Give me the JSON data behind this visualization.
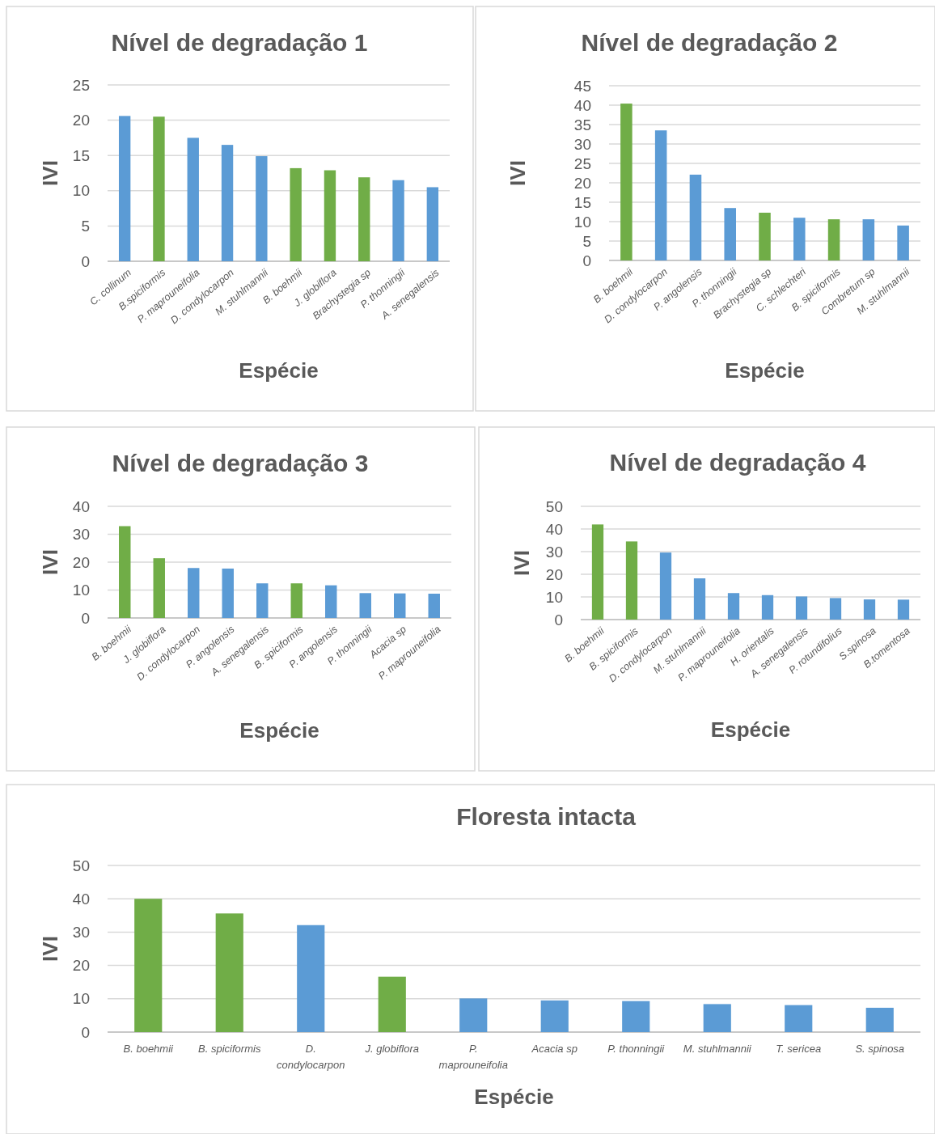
{
  "chart_data": [
    {
      "type": "bar",
      "title": "Nível de degradação 1",
      "xlabel": "Espécie",
      "ylabel": "IVI",
      "categories": [
        "C. collinum",
        "B.spiciformis",
        "P. maprouneifolia",
        "D. condylocarpon",
        "M. stuhlmannii",
        "B. boehmii",
        "J. globiflora",
        "Brachystegia sp",
        "P. thonningii",
        "A. senegalensis"
      ],
      "values": [
        20.6,
        20.5,
        17.5,
        16.5,
        14.9,
        13.2,
        12.9,
        11.9,
        11.5,
        10.5
      ],
      "colors": [
        "#5b9bd5",
        "#70ad47",
        "#5b9bd5",
        "#5b9bd5",
        "#5b9bd5",
        "#70ad47",
        "#70ad47",
        "#70ad47",
        "#5b9bd5",
        "#5b9bd5"
      ],
      "ylim": [
        0,
        25
      ],
      "yticks": [
        0,
        5,
        10,
        15,
        20,
        25
      ],
      "grid": "y"
    },
    {
      "type": "bar",
      "title": "Nível de degradação 2",
      "xlabel": "Espécie",
      "ylabel": "IVI",
      "categories": [
        "B. boehmii",
        "D. condylocarpon",
        "P. angolensis",
        "P. thonningii",
        "Brachystegia sp",
        "C. schlechteri",
        "B. spiciformis",
        "Combretum sp",
        "M. stuhlmannii"
      ],
      "values": [
        40.4,
        33.5,
        22.1,
        13.5,
        12.3,
        11.0,
        10.6,
        10.6,
        9.0
      ],
      "colors": [
        "#70ad47",
        "#5b9bd5",
        "#5b9bd5",
        "#5b9bd5",
        "#70ad47",
        "#5b9bd5",
        "#70ad47",
        "#5b9bd5",
        "#5b9bd5"
      ],
      "ylim": [
        0,
        45
      ],
      "yticks": [
        0,
        5,
        10,
        15,
        20,
        25,
        30,
        35,
        40,
        45
      ],
      "grid": "y"
    },
    {
      "type": "bar",
      "title": "Nível de degradação 3",
      "xlabel": "Espécie",
      "ylabel": "IVI",
      "categories": [
        "B. boehmii",
        "J. globiflora",
        "D. condylocarpon",
        "P. angolensis",
        "A. senegalensis",
        "B. spiciformis",
        "P. angolensis",
        "P. thonningii",
        "Acacia sp",
        "P. maprouneifolia"
      ],
      "values": [
        32.9,
        21.4,
        17.9,
        17.7,
        12.4,
        12.4,
        11.7,
        8.9,
        8.8,
        8.7
      ],
      "colors": [
        "#70ad47",
        "#70ad47",
        "#5b9bd5",
        "#5b9bd5",
        "#5b9bd5",
        "#70ad47",
        "#5b9bd5",
        "#5b9bd5",
        "#5b9bd5",
        "#5b9bd5"
      ],
      "ylim": [
        0,
        40
      ],
      "yticks": [
        0,
        10,
        20,
        30,
        40
      ],
      "grid": "y"
    },
    {
      "type": "bar",
      "title": "Nível de degradação 4",
      "xlabel": "Espécie",
      "ylabel": "IVI",
      "categories": [
        "B. boehmii",
        "B. spiciformis",
        "D. condylocarpon",
        "M. stuhlmannii",
        "P. maprouneifolia",
        "H. orientalis",
        "A. senegalensis",
        "P. rotundifolius",
        "S.spinosa",
        "B.tomentosa"
      ],
      "values": [
        42.0,
        34.5,
        29.6,
        18.2,
        11.7,
        10.8,
        10.2,
        9.5,
        8.9,
        8.8
      ],
      "colors": [
        "#70ad47",
        "#70ad47",
        "#5b9bd5",
        "#5b9bd5",
        "#5b9bd5",
        "#5b9bd5",
        "#5b9bd5",
        "#5b9bd5",
        "#5b9bd5",
        "#5b9bd5"
      ],
      "ylim": [
        0,
        50
      ],
      "yticks": [
        0,
        10,
        20,
        30,
        40,
        50
      ],
      "grid": "y"
    },
    {
      "type": "bar",
      "title": "Floresta intacta",
      "xlabel": "Espécie",
      "ylabel": "IVI",
      "categories": [
        "B. boehmii",
        "B. spiciformis",
        "D. condylocarpon",
        "J. globiflora",
        "P. maprouneifolia",
        "Acacia sp",
        "P. thonningii",
        "M. stuhlmannii",
        "T. sericea",
        "S. spinosa"
      ],
      "values": [
        40.0,
        35.6,
        32.1,
        16.6,
        10.1,
        9.5,
        9.3,
        8.4,
        8.1,
        7.3
      ],
      "colors": [
        "#70ad47",
        "#70ad47",
        "#5b9bd5",
        "#70ad47",
        "#5b9bd5",
        "#5b9bd5",
        "#5b9bd5",
        "#5b9bd5",
        "#5b9bd5",
        "#5b9bd5"
      ],
      "ylim": [
        0,
        50
      ],
      "yticks": [
        0,
        10,
        20,
        30,
        40,
        50
      ],
      "grid": "y"
    }
  ]
}
